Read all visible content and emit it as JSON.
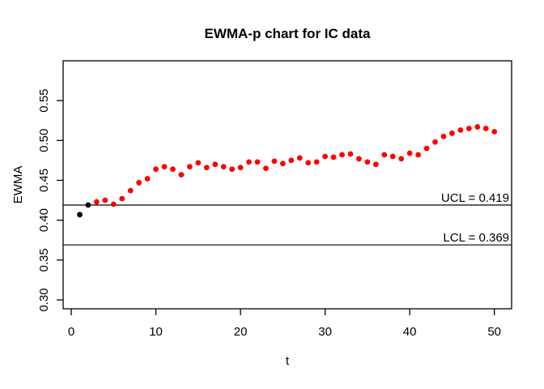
{
  "chart_data": {
    "type": "scatter",
    "title": "EWMA-p chart for IC data",
    "xlabel": "t",
    "ylabel": "EWMA",
    "xticks": [
      0,
      10,
      20,
      30,
      40,
      50
    ],
    "xtick_labels": [
      "0",
      "10",
      "20",
      "30",
      "40",
      "50"
    ],
    "ytick_values": [
      0.3,
      0.35,
      0.4,
      0.45,
      0.5,
      0.55
    ],
    "ytick_labels": [
      "0.30",
      "0.35",
      "0.40",
      "0.45",
      "0.50",
      "0.55"
    ],
    "xlim": [
      -0.96,
      52.04
    ],
    "ylim": [
      0.2889,
      0.5999
    ],
    "grid": false,
    "ucl": {
      "value": 0.419,
      "label": "UCL = 0.419"
    },
    "lcl": {
      "value": 0.369,
      "label": "LCL = 0.369"
    },
    "point_color": "#ff0000",
    "start_point_color": "#000000",
    "line_color": "#000000",
    "n_start_black": 2,
    "t": [
      1,
      2,
      3,
      4,
      5,
      6,
      7,
      8,
      9,
      10,
      11,
      12,
      13,
      14,
      15,
      16,
      17,
      18,
      19,
      20,
      21,
      22,
      23,
      24,
      25,
      26,
      27,
      28,
      29,
      30,
      31,
      32,
      33,
      34,
      35,
      36,
      37,
      38,
      39,
      40,
      41,
      42,
      43,
      44,
      45,
      46,
      47,
      48,
      49,
      50
    ],
    "ewma": [
      0.407,
      0.419,
      0.423,
      0.425,
      0.42,
      0.427,
      0.437,
      0.447,
      0.452,
      0.464,
      0.467,
      0.464,
      0.457,
      0.467,
      0.472,
      0.466,
      0.47,
      0.467,
      0.464,
      0.466,
      0.473,
      0.473,
      0.465,
      0.474,
      0.471,
      0.475,
      0.478,
      0.472,
      0.473,
      0.48,
      0.479,
      0.482,
      0.483,
      0.477,
      0.473,
      0.47,
      0.482,
      0.48,
      0.477,
      0.484,
      0.482,
      0.49,
      0.498,
      0.505,
      0.509,
      0.513,
      0.515,
      0.517,
      0.515,
      0.511
    ]
  }
}
